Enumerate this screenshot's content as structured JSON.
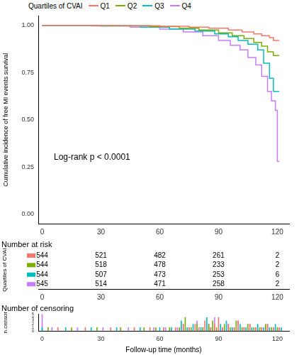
{
  "chart_data": [
    {
      "type": "line",
      "y_label": "Cumulative incidence of free MI events survival",
      "annotation": "Log-rank p < 0.0001",
      "legend": "top",
      "legend_title": "Quartiles of CVAI",
      "grid": false,
      "xlim": [
        -2,
        126
      ],
      "xticks": [
        0,
        30,
        60,
        90,
        120
      ],
      "ylim": [
        -0.05,
        1.05
      ],
      "yticks": [
        {
          "value": 0,
          "label": "0.00"
        },
        0.25,
        {
          "value": 0.5,
          "label": "0.50"
        },
        0.75,
        {
          "value": 1,
          "label": "1.00"
        }
      ],
      "series": [
        {
          "name": "Q1",
          "color": "#F8766D",
          "line_style": "solid",
          "x": [
            0,
            40,
            60,
            75,
            85,
            95,
            102,
            108,
            112,
            116,
            118,
            121
          ],
          "values": [
            1,
            0.998,
            0.995,
            0.99,
            0.985,
            0.975,
            0.965,
            0.955,
            0.945,
            0.935,
            0.92,
            0.92
          ]
        },
        {
          "name": "Q2",
          "color": "#7CAE00",
          "line_style": "solid",
          "x": [
            0,
            35,
            55,
            70,
            80,
            90,
            97,
            103,
            108,
            112,
            115,
            118,
            121
          ],
          "values": [
            1,
            0.998,
            0.993,
            0.985,
            0.975,
            0.96,
            0.945,
            0.93,
            0.91,
            0.89,
            0.86,
            0.84,
            0.84
          ]
        },
        {
          "name": "Q3",
          "color": "#00BFC4",
          "line_style": "solid",
          "x": [
            0,
            30,
            50,
            65,
            78,
            88,
            95,
            100,
            105,
            110,
            113,
            116,
            118,
            121
          ],
          "values": [
            1,
            0.997,
            0.99,
            0.98,
            0.97,
            0.955,
            0.94,
            0.92,
            0.9,
            0.87,
            0.8,
            0.72,
            0.65,
            0.65
          ]
        },
        {
          "name": "Q4",
          "color": "#C77CFF",
          "line_style": "solid",
          "x": [
            0,
            25,
            45,
            60,
            72,
            82,
            90,
            96,
            101,
            105,
            109,
            112,
            115,
            117,
            119,
            120,
            121
          ],
          "values": [
            1,
            0.997,
            0.99,
            0.98,
            0.965,
            0.945,
            0.92,
            0.895,
            0.87,
            0.83,
            0.79,
            0.73,
            0.65,
            0.6,
            0.55,
            0.28,
            0.28
          ]
        }
      ]
    },
    {
      "type": "table",
      "title": "Number at risk",
      "y_label": "Quartiles of CVAI",
      "tick_labels": "x",
      "xlim": [
        -2,
        126
      ],
      "xticks": [
        0,
        30,
        60,
        90,
        120
      ],
      "x": [
        0,
        30,
        60,
        90,
        120
      ],
      "rows": [
        {
          "color": "#F8766D",
          "values": [
            544,
            521,
            482,
            261,
            2
          ]
        },
        {
          "color": "#7CAE00",
          "values": [
            544,
            518,
            478,
            233,
            2
          ]
        },
        {
          "color": "#00BFC4",
          "values": [
            544,
            507,
            473,
            253,
            6
          ]
        },
        {
          "color": "#C77CFF",
          "values": [
            545,
            514,
            471,
            258,
            2
          ]
        }
      ]
    },
    {
      "type": "bar",
      "title": "Number of censoring",
      "x_label": "Follow-up time (months)",
      "y_label": "n.censor",
      "grid": false,
      "xlim": [
        -2,
        126
      ],
      "xticks": [
        0,
        30,
        60,
        90,
        120
      ],
      "ylim": [
        0,
        5
      ],
      "yticks": [
        0,
        1,
        2,
        3,
        4,
        5
      ],
      "series": [
        {
          "color": "#F8766D",
          "x": [
            8,
            22,
            35,
            47,
            55,
            62,
            68,
            72,
            75,
            78,
            80,
            83,
            86,
            88,
            90,
            92,
            95,
            98,
            100,
            103,
            106,
            109,
            112,
            115,
            118,
            121
          ],
          "values": [
            1,
            1,
            1,
            1,
            1,
            1,
            1,
            2,
            1,
            2,
            1,
            3,
            1,
            2,
            4,
            1,
            2,
            1,
            3,
            1,
            2,
            1,
            1,
            2,
            1,
            1
          ]
        },
        {
          "color": "#7CAE00",
          "x": [
            3,
            15,
            28,
            40,
            52,
            58,
            65,
            70,
            73,
            76,
            79,
            82,
            85,
            87,
            89,
            93,
            96,
            99,
            102,
            105,
            108,
            111,
            114,
            117,
            120
          ],
          "values": [
            1,
            1,
            1,
            1,
            1,
            1,
            1,
            1,
            4,
            1,
            2,
            1,
            2,
            3,
            1,
            2,
            1,
            3,
            1,
            2,
            1,
            1,
            2,
            1,
            1
          ]
        },
        {
          "color": "#00BFC4",
          "x": [
            0,
            12,
            25,
            38,
            50,
            60,
            66,
            71,
            74,
            77,
            81,
            84,
            86,
            91,
            94,
            97,
            101,
            104,
            107,
            110,
            113,
            116,
            119,
            122
          ],
          "values": [
            1,
            1,
            1,
            1,
            1,
            1,
            1,
            3,
            1,
            2,
            1,
            4,
            1,
            2,
            3,
            1,
            2,
            1,
            1,
            2,
            1,
            1,
            2,
            1
          ]
        },
        {
          "color": "#C77CFF",
          "x": [
            0,
            5,
            18,
            31,
            44,
            57,
            63,
            69,
            72,
            75,
            79,
            82,
            85,
            88,
            92,
            95,
            98,
            100,
            103,
            106,
            109,
            112,
            115,
            118,
            121
          ],
          "values": [
            5,
            1,
            1,
            1,
            1,
            1,
            1,
            1,
            2,
            1,
            3,
            1,
            2,
            4,
            1,
            2,
            1,
            3,
            1,
            2,
            1,
            1,
            2,
            1,
            1
          ]
        }
      ]
    }
  ]
}
